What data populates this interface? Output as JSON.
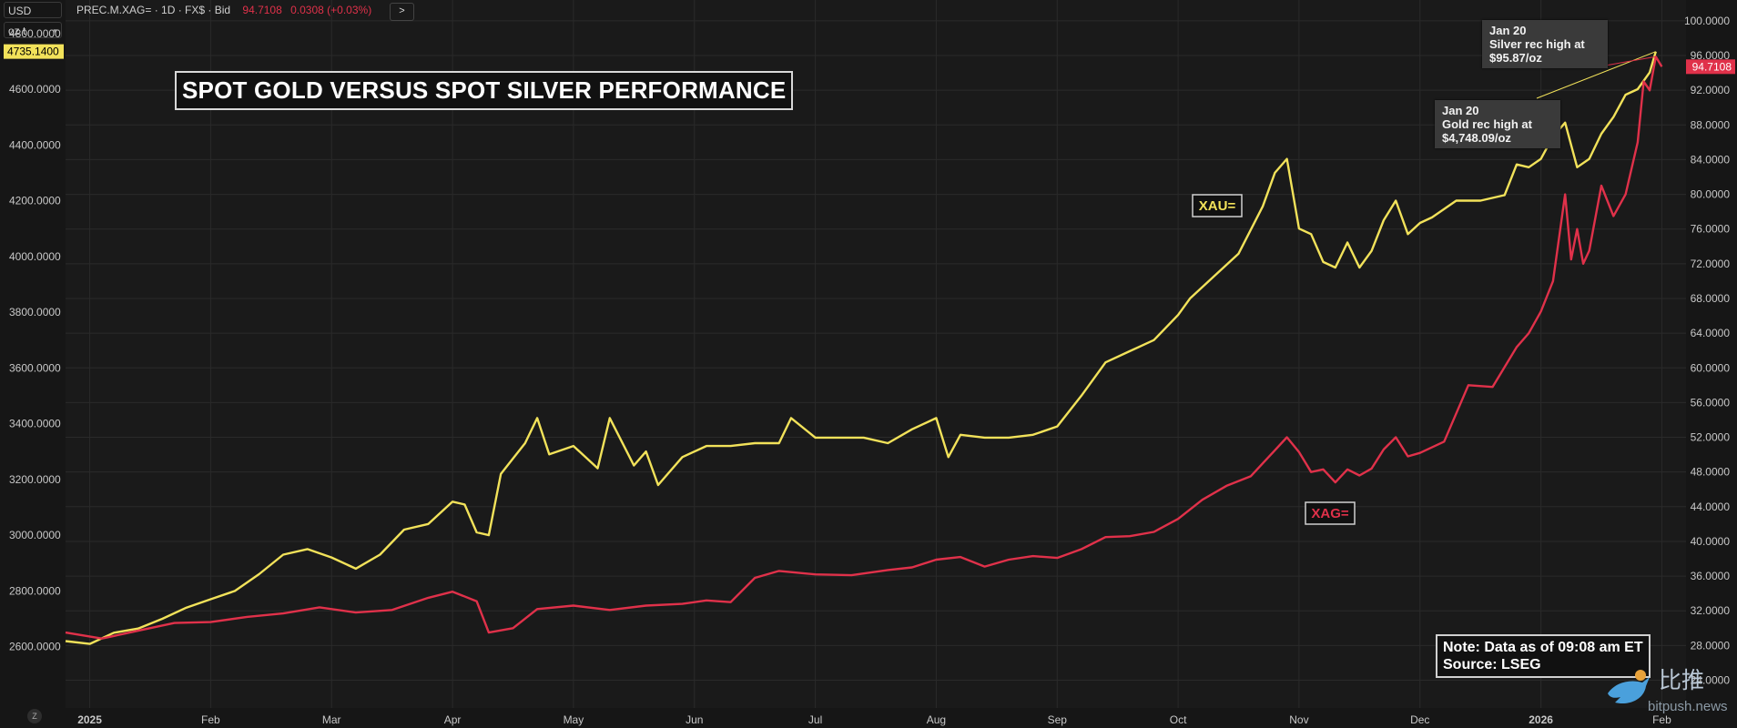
{
  "header": {
    "currency": "USD",
    "unit": "oz t",
    "instrument": "PREC.M.XAG= · 1D · FX$ · Bid",
    "last_price": "94.7108",
    "change": "0.0308 (+0.03%)",
    "expand_glyph": ">"
  },
  "title": "SPOT GOLD VERSUS SPOT SILVER PERFORMANCE",
  "annotations": {
    "silver": {
      "date": "Jan 20",
      "line1": "Silver rec high at",
      "line2": "$95.87/oz"
    },
    "gold": {
      "date": "Jan 20",
      "line1": "Gold rec high at",
      "line2": "$4,748.09/oz"
    }
  },
  "note": {
    "line1": "Note: Data as of 09:08 am ET",
    "line2": "Source: LSEG"
  },
  "watermark": {
    "cn": "比推",
    "site": "bitpush.news",
    "icon": "bird-icon"
  },
  "colors": {
    "gold": "#f2e25a",
    "silver": "#e0314a",
    "grid": "#2a2a2a",
    "background": "#1a1a1a"
  },
  "chart_data": {
    "type": "line",
    "title": "SPOT GOLD VERSUS SPOT SILVER PERFORMANCE",
    "x_range": [
      0,
      13.4
    ],
    "x_ticks": [
      {
        "label": "2025",
        "t": 0.2,
        "bold": true
      },
      {
        "label": "Feb",
        "t": 1.2
      },
      {
        "label": "Mar",
        "t": 2.2
      },
      {
        "label": "Apr",
        "t": 3.2
      },
      {
        "label": "May",
        "t": 4.2
      },
      {
        "label": "Jun",
        "t": 5.2
      },
      {
        "label": "Jul",
        "t": 6.2
      },
      {
        "label": "Aug",
        "t": 7.2
      },
      {
        "label": "Sep",
        "t": 8.2
      },
      {
        "label": "Oct",
        "t": 9.2
      },
      {
        "label": "Nov",
        "t": 10.2
      },
      {
        "label": "Dec",
        "t": 11.2
      },
      {
        "label": "2026",
        "t": 12.2,
        "bold": true
      },
      {
        "label": "Feb",
        "t": 13.2
      }
    ],
    "y_left": {
      "unit": "USD",
      "range": [
        2380,
        4920
      ],
      "ticks": [
        "2600.0000",
        "2800.0000",
        "3000.0000",
        "3200.0000",
        "3400.0000",
        "3600.0000",
        "3800.0000",
        "4000.0000",
        "4200.0000",
        "4400.0000",
        "4600.0000",
        "4800.0000"
      ]
    },
    "y_right": {
      "unit": "USD",
      "range": [
        20.8,
        102.4
      ],
      "ticks": [
        "24.0000",
        "28.0000",
        "32.0000",
        "36.0000",
        "40.0000",
        "44.0000",
        "48.0000",
        "52.0000",
        "56.0000",
        "60.0000",
        "64.0000",
        "68.0000",
        "72.0000",
        "76.0000",
        "80.0000",
        "84.0000",
        "88.0000",
        "92.0000",
        "96.0000",
        "100.0000"
      ]
    },
    "last_values": {
      "gold": "4735.1400",
      "silver": "94.7108"
    },
    "series": [
      {
        "name": "XAU=",
        "axis": "left",
        "points": [
          [
            0,
            2620
          ],
          [
            0.2,
            2610
          ],
          [
            0.4,
            2650
          ],
          [
            0.6,
            2665
          ],
          [
            0.8,
            2700
          ],
          [
            1.0,
            2740
          ],
          [
            1.2,
            2770
          ],
          [
            1.4,
            2800
          ],
          [
            1.6,
            2860
          ],
          [
            1.8,
            2930
          ],
          [
            2.0,
            2950
          ],
          [
            2.2,
            2920
          ],
          [
            2.4,
            2880
          ],
          [
            2.6,
            2930
          ],
          [
            2.8,
            3020
          ],
          [
            3.0,
            3040
          ],
          [
            3.2,
            3120
          ],
          [
            3.3,
            3110
          ],
          [
            3.4,
            3010
          ],
          [
            3.5,
            3000
          ],
          [
            3.6,
            3220
          ],
          [
            3.8,
            3330
          ],
          [
            3.9,
            3420
          ],
          [
            4.0,
            3290
          ],
          [
            4.2,
            3320
          ],
          [
            4.4,
            3240
          ],
          [
            4.5,
            3420
          ],
          [
            4.7,
            3250
          ],
          [
            4.8,
            3300
          ],
          [
            4.9,
            3180
          ],
          [
            5.1,
            3280
          ],
          [
            5.3,
            3320
          ],
          [
            5.5,
            3320
          ],
          [
            5.7,
            3330
          ],
          [
            5.9,
            3330
          ],
          [
            6.0,
            3420
          ],
          [
            6.2,
            3350
          ],
          [
            6.4,
            3350
          ],
          [
            6.6,
            3350
          ],
          [
            6.8,
            3330
          ],
          [
            7.0,
            3380
          ],
          [
            7.2,
            3420
          ],
          [
            7.3,
            3280
          ],
          [
            7.4,
            3360
          ],
          [
            7.6,
            3350
          ],
          [
            7.8,
            3350
          ],
          [
            8.0,
            3360
          ],
          [
            8.2,
            3390
          ],
          [
            8.4,
            3500
          ],
          [
            8.6,
            3620
          ],
          [
            8.8,
            3660
          ],
          [
            9.0,
            3700
          ],
          [
            9.2,
            3790
          ],
          [
            9.3,
            3850
          ],
          [
            9.5,
            3930
          ],
          [
            9.7,
            4010
          ],
          [
            9.9,
            4180
          ],
          [
            10.0,
            4300
          ],
          [
            10.1,
            4350
          ],
          [
            10.2,
            4100
          ],
          [
            10.3,
            4080
          ],
          [
            10.4,
            3980
          ],
          [
            10.5,
            3960
          ],
          [
            10.6,
            4050
          ],
          [
            10.7,
            3960
          ],
          [
            10.8,
            4020
          ],
          [
            10.9,
            4130
          ],
          [
            11.0,
            4200
          ],
          [
            11.1,
            4080
          ],
          [
            11.2,
            4120
          ],
          [
            11.3,
            4140
          ],
          [
            11.5,
            4200
          ],
          [
            11.7,
            4200
          ],
          [
            11.9,
            4220
          ],
          [
            12.0,
            4330
          ],
          [
            12.1,
            4320
          ],
          [
            12.2,
            4350
          ],
          [
            12.3,
            4430
          ],
          [
            12.4,
            4480
          ],
          [
            12.5,
            4320
          ],
          [
            12.6,
            4350
          ],
          [
            12.7,
            4440
          ],
          [
            12.8,
            4500
          ],
          [
            12.9,
            4580
          ],
          [
            13.0,
            4600
          ],
          [
            13.1,
            4660
          ],
          [
            13.15,
            4735
          ]
        ]
      },
      {
        "name": "XAG=",
        "axis": "right",
        "points": [
          [
            0,
            29.5
          ],
          [
            0.3,
            28.8
          ],
          [
            0.6,
            29.7
          ],
          [
            0.9,
            30.6
          ],
          [
            1.2,
            30.7
          ],
          [
            1.5,
            31.3
          ],
          [
            1.8,
            31.7
          ],
          [
            2.1,
            32.4
          ],
          [
            2.4,
            31.8
          ],
          [
            2.7,
            32.1
          ],
          [
            3.0,
            33.5
          ],
          [
            3.2,
            34.2
          ],
          [
            3.4,
            33.1
          ],
          [
            3.5,
            29.5
          ],
          [
            3.7,
            30.0
          ],
          [
            3.9,
            32.2
          ],
          [
            4.2,
            32.6
          ],
          [
            4.5,
            32.1
          ],
          [
            4.8,
            32.6
          ],
          [
            5.1,
            32.8
          ],
          [
            5.3,
            33.2
          ],
          [
            5.5,
            33.0
          ],
          [
            5.7,
            35.8
          ],
          [
            5.9,
            36.6
          ],
          [
            6.2,
            36.2
          ],
          [
            6.5,
            36.1
          ],
          [
            6.8,
            36.7
          ],
          [
            7.0,
            37.0
          ],
          [
            7.2,
            37.9
          ],
          [
            7.4,
            38.2
          ],
          [
            7.6,
            37.1
          ],
          [
            7.8,
            37.9
          ],
          [
            8.0,
            38.3
          ],
          [
            8.2,
            38.1
          ],
          [
            8.4,
            39.1
          ],
          [
            8.6,
            40.5
          ],
          [
            8.8,
            40.6
          ],
          [
            9.0,
            41.1
          ],
          [
            9.2,
            42.6
          ],
          [
            9.4,
            44.8
          ],
          [
            9.6,
            46.4
          ],
          [
            9.8,
            47.5
          ],
          [
            10.0,
            50.5
          ],
          [
            10.1,
            52.0
          ],
          [
            10.2,
            50.3
          ],
          [
            10.3,
            48.0
          ],
          [
            10.4,
            48.3
          ],
          [
            10.5,
            46.8
          ],
          [
            10.6,
            48.3
          ],
          [
            10.7,
            47.6
          ],
          [
            10.8,
            48.4
          ],
          [
            10.9,
            50.6
          ],
          [
            11.0,
            52.0
          ],
          [
            11.1,
            49.8
          ],
          [
            11.2,
            50.2
          ],
          [
            11.4,
            51.5
          ],
          [
            11.6,
            58.0
          ],
          [
            11.8,
            57.8
          ],
          [
            12.0,
            62.4
          ],
          [
            12.1,
            64.0
          ],
          [
            12.2,
            66.5
          ],
          [
            12.3,
            70.0
          ],
          [
            12.4,
            80.0
          ],
          [
            12.45,
            72.5
          ],
          [
            12.5,
            76.0
          ],
          [
            12.55,
            72.0
          ],
          [
            12.6,
            73.5
          ],
          [
            12.7,
            81.0
          ],
          [
            12.8,
            77.5
          ],
          [
            12.9,
            80.0
          ],
          [
            13.0,
            86.0
          ],
          [
            13.05,
            93.0
          ],
          [
            13.1,
            92.0
          ],
          [
            13.15,
            95.87
          ],
          [
            13.2,
            94.71
          ]
        ]
      }
    ],
    "series_labels": [
      "XAU=",
      "XAG="
    ]
  }
}
